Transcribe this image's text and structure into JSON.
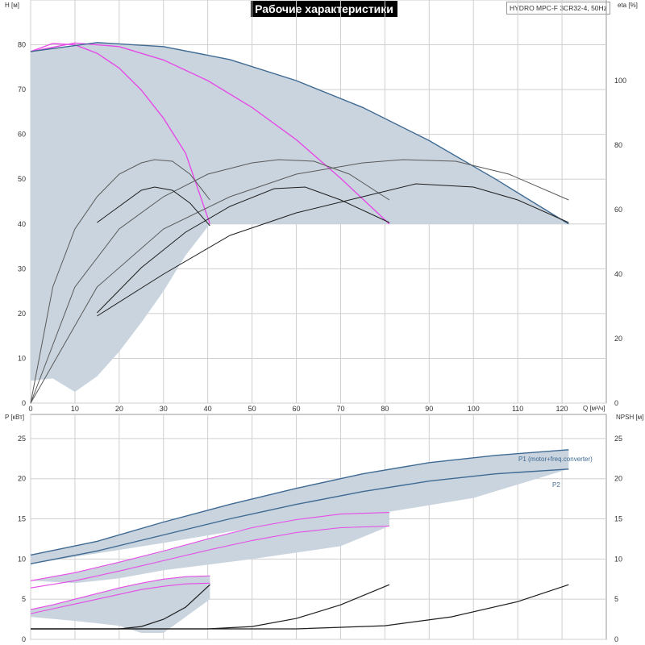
{
  "header": {
    "title": "Рабочие характеристики",
    "model": "HYDRO MPC-F 3CR32-4, 50Hz"
  },
  "colors": {
    "envelope_fill": "#c9d4df",
    "max_curve": "#3f6a93",
    "speed_curve": "#e64be6",
    "eta_curve": "#5a5a5a",
    "npsh_curve": "#1e1e1e",
    "grid": "#cfcfcf"
  },
  "chart_data": [
    {
      "type": "line",
      "panel": "head-efficiency",
      "xlabel": "Q [м³/ч]",
      "ylabel": "H [м]",
      "y2label": "eta [%]",
      "x_ticks": [
        "0",
        "10",
        "20",
        "30",
        "40",
        "50",
        "60",
        "70",
        "80",
        "90",
        "100",
        "110",
        "120"
      ],
      "y_ticks": [
        "0",
        "10",
        "20",
        "30",
        "40",
        "50",
        "60",
        "70",
        "80"
      ],
      "y2_ticks": [
        "0",
        "20",
        "40",
        "60",
        "80",
        "100"
      ],
      "xlim": [
        0,
        130
      ],
      "ylim": [
        0,
        90
      ],
      "y2lim": [
        0,
        125
      ],
      "grid": true,
      "series": [
        {
          "id": "h-1pump-max",
          "kind": "max",
          "points": [
            [
              0,
              78.5
            ],
            [
              5,
              80.3
            ],
            [
              10,
              80.0
            ],
            [
              15,
              78.1
            ],
            [
              20,
              74.8
            ],
            [
              25,
              69.9
            ],
            [
              30,
              63.6
            ],
            [
              35,
              55.8
            ],
            [
              40.5,
              40.0
            ]
          ]
        },
        {
          "id": "h-2pump-max",
          "kind": "max",
          "points": [
            [
              0,
              78.5
            ],
            [
              10,
              80.4
            ],
            [
              20,
              79.6
            ],
            [
              30,
              76.6
            ],
            [
              40,
              72.0
            ],
            [
              50,
              66.0
            ],
            [
              60,
              58.8
            ],
            [
              70,
              50.2
            ],
            [
              81,
              40.0
            ]
          ]
        },
        {
          "id": "h-3pump-max",
          "kind": "max",
          "points": [
            [
              0,
              78.5
            ],
            [
              15,
              80.5
            ],
            [
              30,
              79.6
            ],
            [
              45,
              76.7
            ],
            [
              60,
              72.0
            ],
            [
              75,
              66.0
            ],
            [
              90,
              58.6
            ],
            [
              105,
              50.0
            ],
            [
              121.5,
              40.0
            ]
          ]
        },
        {
          "id": "h-1pump-lower",
          "kind": "envelope-lower",
          "points": [
            [
              0,
              5.0
            ],
            [
              5,
              5.5
            ],
            [
              10,
              2.5
            ],
            [
              15,
              6.0
            ],
            [
              20,
              11.5
            ],
            [
              25,
              18.0
            ],
            [
              30,
              25.0
            ],
            [
              35,
              33.0
            ],
            [
              40.5,
              40.0
            ]
          ]
        },
        {
          "id": "eta-1pump",
          "kind": "eta",
          "points": [
            [
              0,
              0
            ],
            [
              5,
              36
            ],
            [
              10,
              54
            ],
            [
              15,
              64
            ],
            [
              20,
              71
            ],
            [
              25,
              74.5
            ],
            [
              28,
              75.5
            ],
            [
              32,
              75
            ],
            [
              36,
              71
            ],
            [
              40.5,
              63
            ]
          ]
        },
        {
          "id": "eta-2pump",
          "kind": "eta",
          "points": [
            [
              0,
              0
            ],
            [
              10,
              36
            ],
            [
              20,
              54
            ],
            [
              30,
              64
            ],
            [
              40,
              71
            ],
            [
              50,
              74.5
            ],
            [
              56,
              75.5
            ],
            [
              64,
              75
            ],
            [
              72,
              71
            ],
            [
              81,
              63
            ]
          ]
        },
        {
          "id": "eta-3pump",
          "kind": "eta",
          "points": [
            [
              0,
              0
            ],
            [
              15,
              36
            ],
            [
              30,
              54
            ],
            [
              45,
              64
            ],
            [
              60,
              71
            ],
            [
              75,
              74.5
            ],
            [
              84,
              75.5
            ],
            [
              96,
              75
            ],
            [
              108,
              71
            ],
            [
              121.5,
              63
            ]
          ]
        },
        {
          "id": "eta-1pump-min",
          "kind": "eta",
          "points": [
            [
              15,
              56
            ],
            [
              20,
              61
            ],
            [
              25,
              66
            ],
            [
              28,
              67
            ],
            [
              32,
              66
            ],
            [
              36,
              62
            ],
            [
              40.5,
              55
            ]
          ]
        },
        {
          "id": "eta-2pump-min",
          "kind": "eta",
          "points": [
            [
              15,
              28
            ],
            [
              25,
              42
            ],
            [
              35,
              53
            ],
            [
              45,
              61
            ],
            [
              55,
              66.5
            ],
            [
              62,
              67
            ],
            [
              70,
              63
            ],
            [
              81,
              56
            ]
          ]
        },
        {
          "id": "eta-3pump-min",
          "kind": "eta",
          "points": [
            [
              15,
              27
            ],
            [
              30,
              40
            ],
            [
              45,
              52
            ],
            [
              60,
              59
            ],
            [
              75,
              64
            ],
            [
              87,
              68
            ],
            [
              100,
              67
            ],
            [
              110,
              63
            ],
            [
              121.5,
              56
            ]
          ]
        }
      ]
    },
    {
      "type": "line",
      "panel": "power-npsh",
      "ylabel": "P [кВт]",
      "y2label": "NPSH [м]",
      "y_ticks": [
        "0",
        "5",
        "10",
        "15",
        "20",
        "25"
      ],
      "y2_ticks": [
        "0",
        "5",
        "10",
        "15",
        "20",
        "25"
      ],
      "xlim": [
        0,
        130
      ],
      "ylim": [
        0,
        28
      ],
      "grid": true,
      "series": [
        {
          "id": "p1-total",
          "name": "P1 (motor+freq.converter)",
          "kind": "max",
          "points": [
            [
              0,
              10.5
            ],
            [
              15,
              12.2
            ],
            [
              30,
              14.6
            ],
            [
              45,
              16.8
            ],
            [
              60,
              18.8
            ],
            [
              75,
              20.6
            ],
            [
              90,
              22.0
            ],
            [
              105,
              22.9
            ],
            [
              121.5,
              23.6
            ]
          ]
        },
        {
          "id": "p2-total",
          "name": "P2",
          "kind": "max",
          "points": [
            [
              0,
              9.4
            ],
            [
              15,
              11.0
            ],
            [
              30,
              13.0
            ],
            [
              45,
              15.0
            ],
            [
              60,
              16.8
            ],
            [
              75,
              18.4
            ],
            [
              90,
              19.7
            ],
            [
              105,
              20.6
            ],
            [
              121.5,
              21.2
            ]
          ]
        },
        {
          "id": "p1-2pump",
          "kind": "speed",
          "points": [
            [
              0,
              7.3
            ],
            [
              10,
              8.3
            ],
            [
              20,
              9.6
            ],
            [
              30,
              11.0
            ],
            [
              40,
              12.5
            ],
            [
              50,
              13.9
            ],
            [
              60,
              14.9
            ],
            [
              70,
              15.6
            ],
            [
              81,
              15.8
            ]
          ]
        },
        {
          "id": "p2-2pump",
          "kind": "speed",
          "points": [
            [
              0,
              6.4
            ],
            [
              10,
              7.3
            ],
            [
              20,
              8.5
            ],
            [
              30,
              9.8
            ],
            [
              40,
              11.1
            ],
            [
              50,
              12.3
            ],
            [
              60,
              13.3
            ],
            [
              70,
              13.9
            ],
            [
              81,
              14.1
            ]
          ]
        },
        {
          "id": "p1-1pump",
          "kind": "speed",
          "points": [
            [
              0,
              3.7
            ],
            [
              5,
              4.3
            ],
            [
              10,
              5.0
            ],
            [
              15,
              5.7
            ],
            [
              20,
              6.4
            ],
            [
              25,
              7.0
            ],
            [
              30,
              7.5
            ],
            [
              35,
              7.8
            ],
            [
              40.5,
              7.9
            ]
          ]
        },
        {
          "id": "p2-1pump",
          "kind": "speed",
          "points": [
            [
              0,
              3.2
            ],
            [
              5,
              3.8
            ],
            [
              10,
              4.4
            ],
            [
              15,
              5.0
            ],
            [
              20,
              5.6
            ],
            [
              25,
              6.2
            ],
            [
              30,
              6.6
            ],
            [
              35,
              6.9
            ],
            [
              40.5,
              7.0
            ]
          ]
        },
        {
          "id": "npsh-1pump",
          "kind": "npsh",
          "points": [
            [
              0,
              1.3
            ],
            [
              20,
              1.3
            ],
            [
              25,
              1.6
            ],
            [
              30,
              2.5
            ],
            [
              35,
              4.0
            ],
            [
              40.5,
              6.8
            ]
          ]
        },
        {
          "id": "npsh-2pump",
          "kind": "npsh",
          "points": [
            [
              0,
              1.3
            ],
            [
              40,
              1.3
            ],
            [
              50,
              1.6
            ],
            [
              60,
              2.6
            ],
            [
              70,
              4.3
            ],
            [
              81,
              6.8
            ]
          ]
        },
        {
          "id": "npsh-3pump",
          "kind": "npsh",
          "points": [
            [
              0,
              1.3
            ],
            [
              60,
              1.3
            ],
            [
              80,
              1.7
            ],
            [
              95,
              2.8
            ],
            [
              110,
              4.7
            ],
            [
              121.5,
              6.8
            ]
          ]
        }
      ]
    }
  ]
}
